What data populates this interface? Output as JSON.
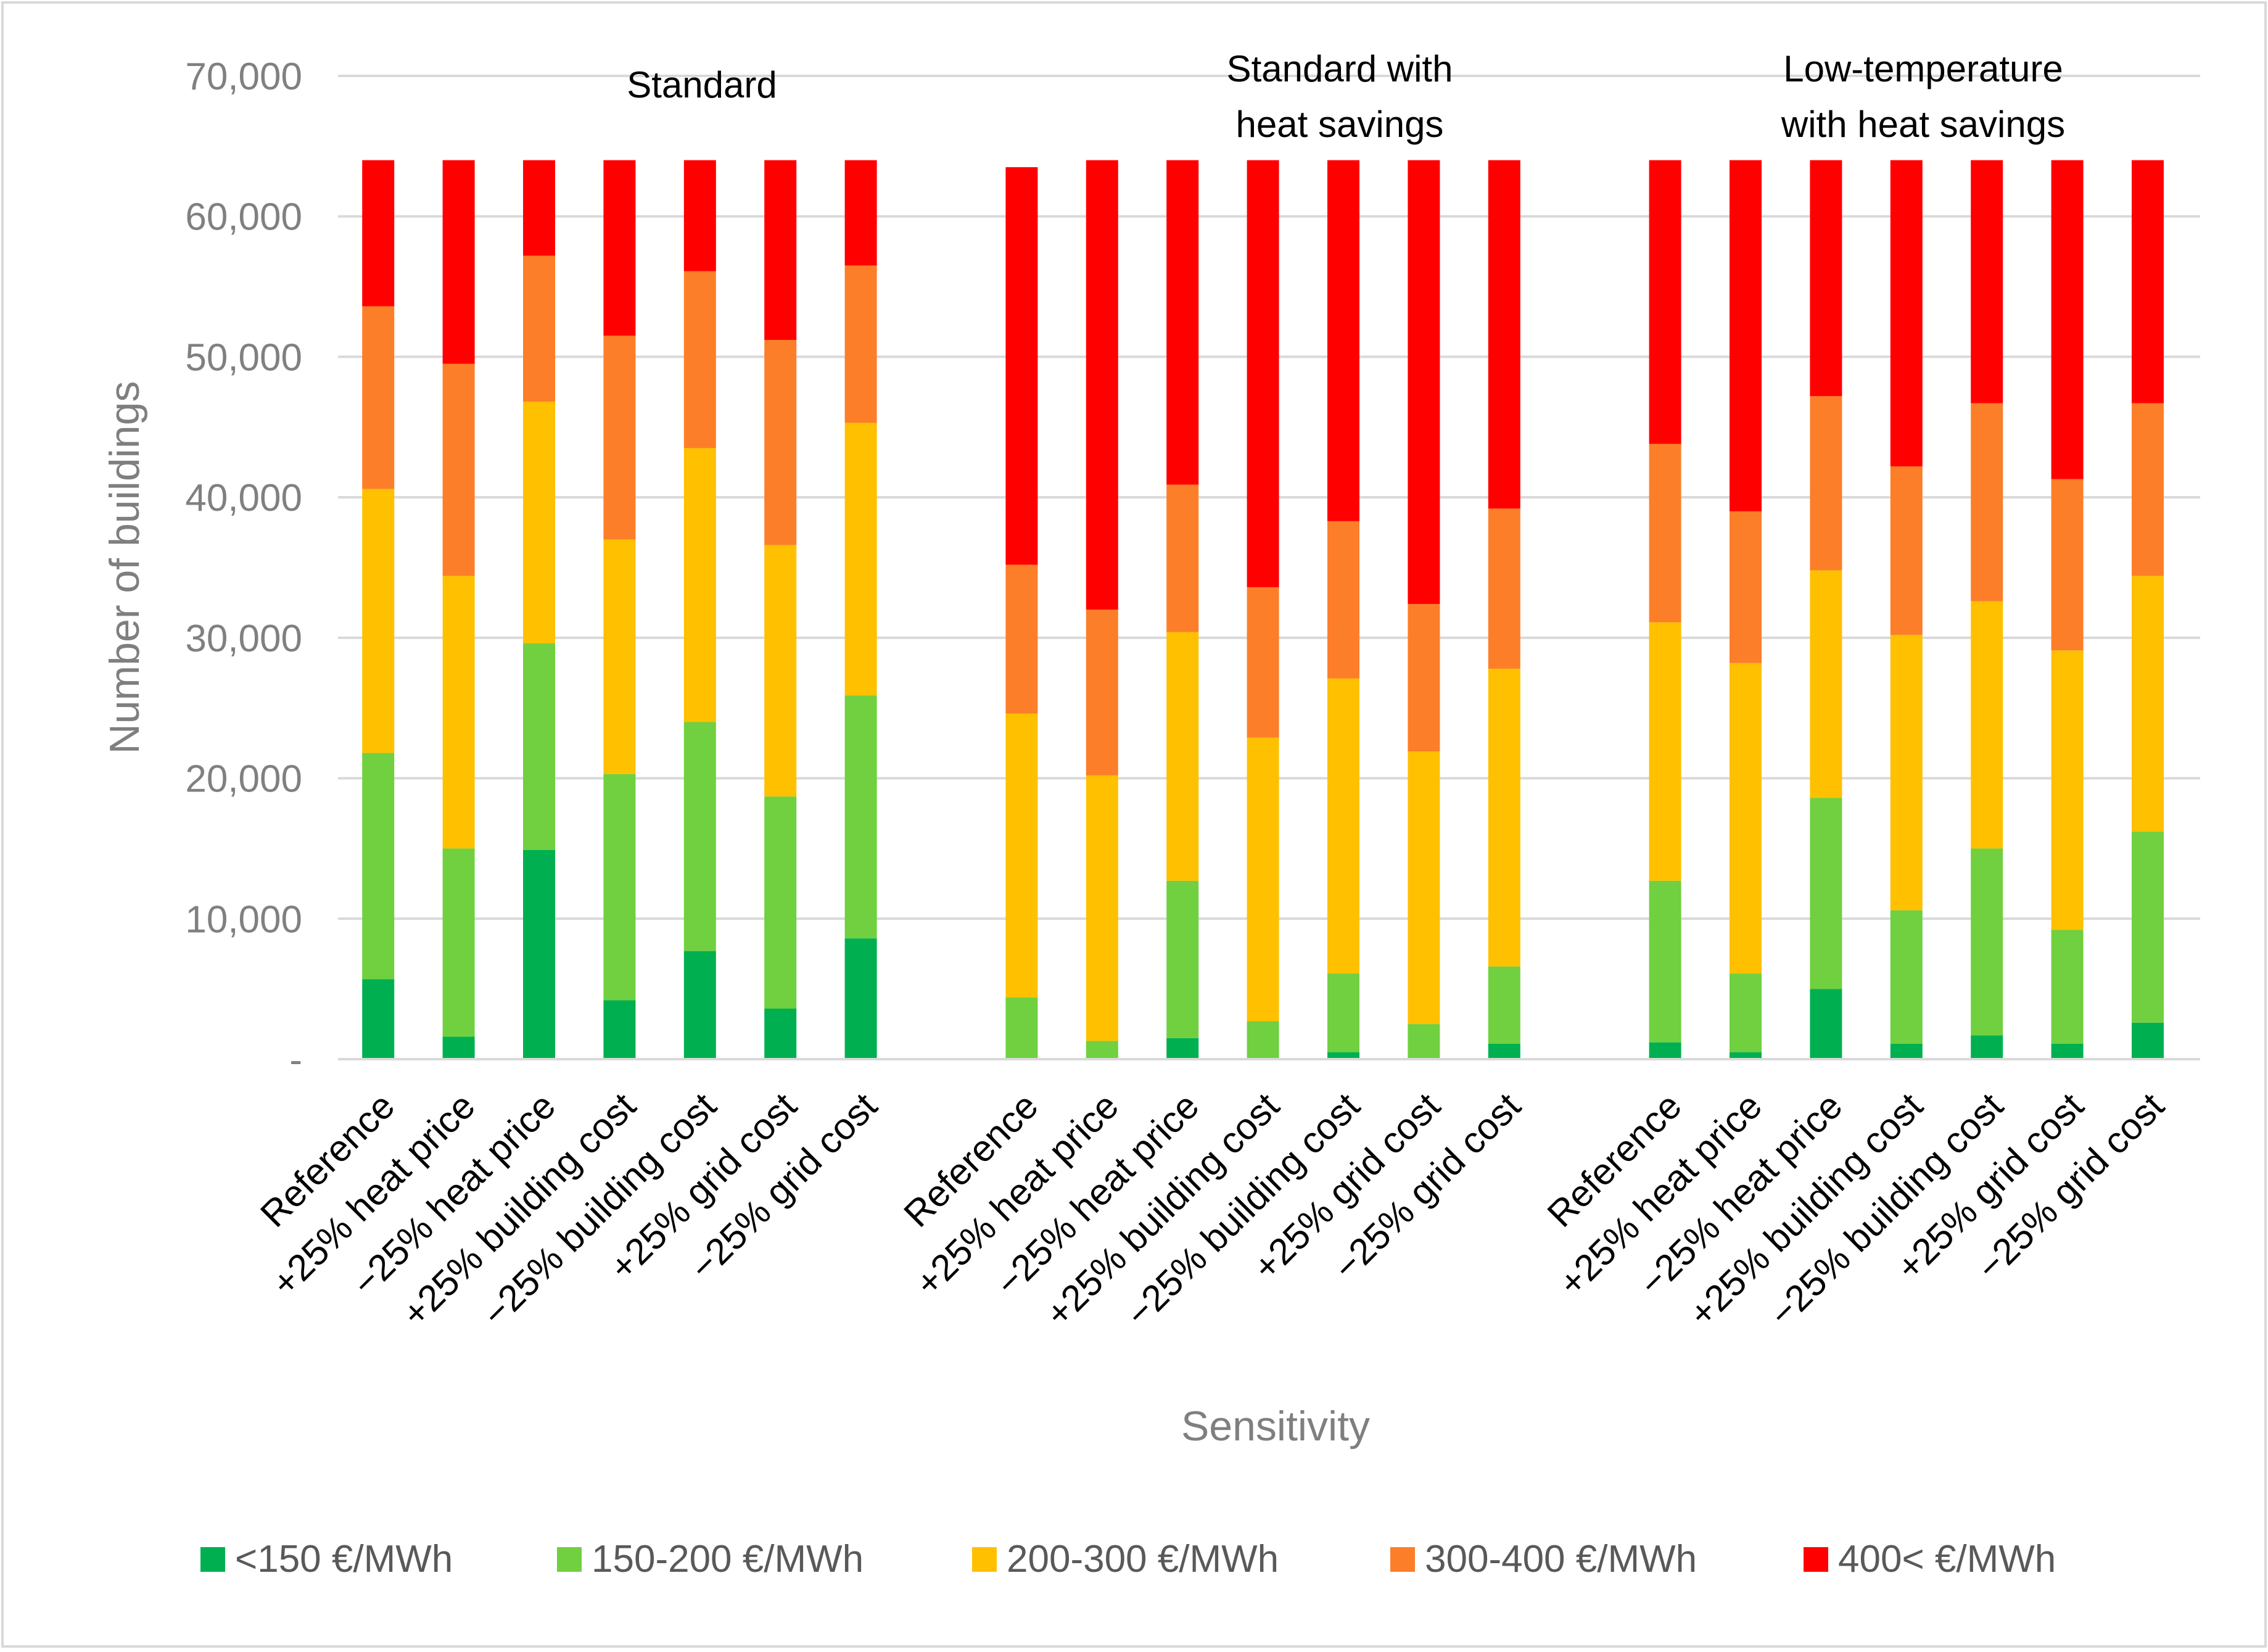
{
  "chart_data": {
    "type": "bar",
    "stacked": true,
    "xlabel": "Sensitivity",
    "ylabel": "Number of buildings",
    "ylim": [
      0,
      70000
    ],
    "yticks": [
      "-",
      "10,000",
      "20,000",
      "30,000",
      "40,000",
      "50,000",
      "60,000",
      "70,000"
    ],
    "grid": true,
    "legend_position": "bottom",
    "groups": [
      {
        "label_lines": [
          "Standard"
        ],
        "categories": [
          "Reference",
          "+25% heat price",
          "−25% heat price",
          "+25% building cost",
          "−25% building cost",
          "+25% grid cost",
          "−25% grid cost"
        ]
      },
      {
        "label_lines": [
          "Standard with",
          "heat savings"
        ],
        "categories": [
          "Reference",
          "+25% heat price",
          "−25% heat price",
          "+25% building cost",
          "−25% building cost",
          "+25% grid cost",
          "−25% grid cost"
        ]
      },
      {
        "label_lines": [
          "Low-temperature",
          "with heat savings"
        ],
        "categories": [
          "Reference",
          "+25% heat price",
          "−25% heat price",
          "+25% building cost",
          "−25% building cost",
          "+25% grid cost",
          "−25% grid cost"
        ]
      }
    ],
    "series": [
      {
        "name": "<150 €/MWh",
        "color": "#00b050",
        "values": [
          5700,
          1600,
          14900,
          4200,
          7700,
          3600,
          8600,
          0,
          0,
          1500,
          0,
          500,
          0,
          1100,
          1200,
          500,
          5000,
          1100,
          1700,
          1100,
          2600
        ]
      },
      {
        "name": "150-200 €/MWh",
        "color": "#70d040",
        "values": [
          16100,
          13400,
          14700,
          16100,
          16300,
          15100,
          17300,
          4400,
          1300,
          11200,
          2700,
          5600,
          2500,
          5500,
          11500,
          5600,
          13600,
          9500,
          13300,
          8100,
          13600
        ]
      },
      {
        "name": "200-300 €/MWh",
        "color": "#ffc000",
        "values": [
          18800,
          19400,
          17200,
          16700,
          19500,
          17900,
          19400,
          20200,
          18900,
          17700,
          20200,
          21000,
          19400,
          21200,
          18400,
          22100,
          16200,
          19600,
          17600,
          19900,
          18200
        ]
      },
      {
        "name": "300-400 €/MWh",
        "color": "#fd7e28",
        "values": [
          13000,
          15100,
          10400,
          14500,
          12600,
          14600,
          11200,
          10600,
          11800,
          10500,
          10700,
          11200,
          10500,
          11400,
          12700,
          10800,
          12400,
          12000,
          14100,
          12200,
          12300
        ]
      },
      {
        "name": "400< €/MWh",
        "color": "#ff0000",
        "values": [
          10400,
          14500,
          6800,
          12500,
          7900,
          12800,
          7500,
          28300,
          32000,
          23100,
          30400,
          25700,
          31600,
          24800,
          20200,
          25000,
          16800,
          21800,
          17300,
          22700,
          17300
        ]
      }
    ]
  }
}
